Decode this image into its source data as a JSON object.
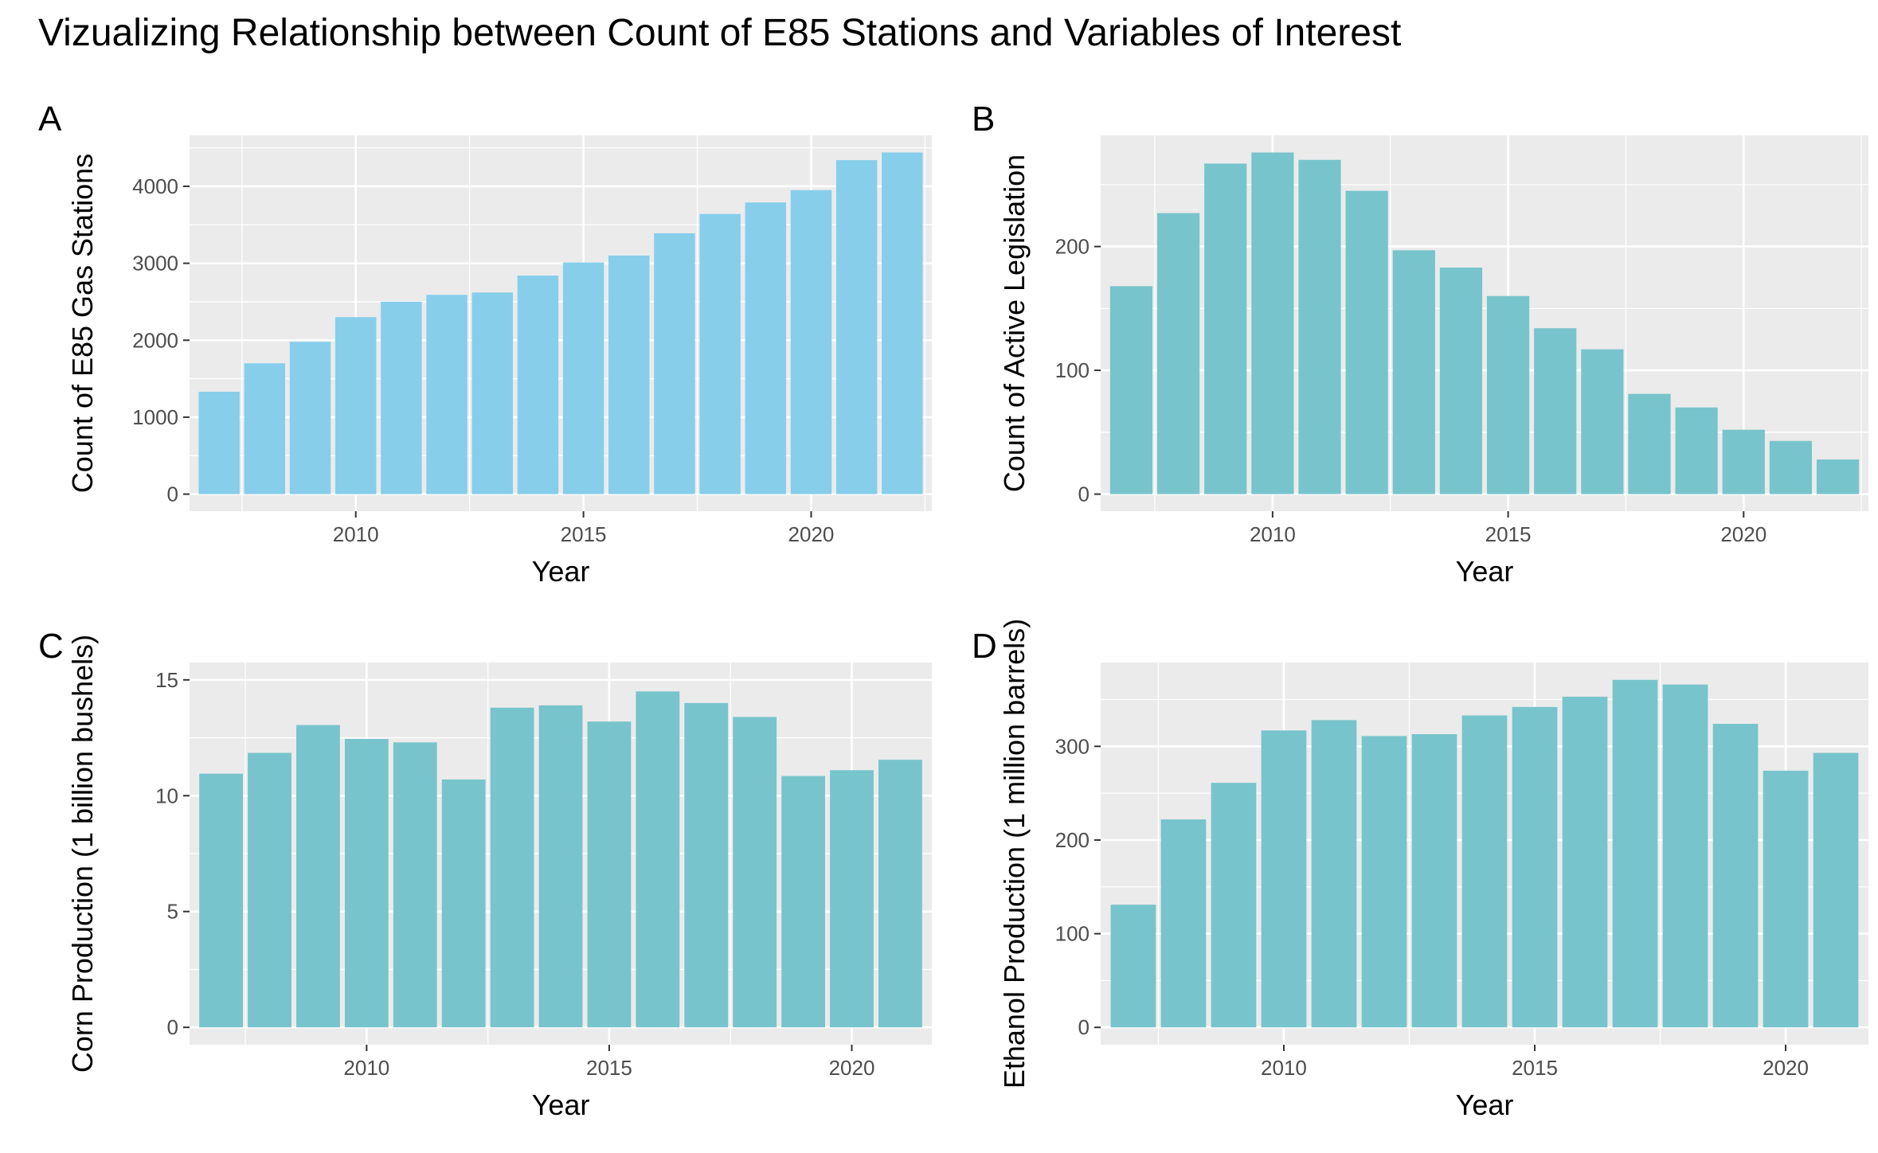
{
  "title": "Vizualizing Relationship between Count of E85 Stations and Variables of Interest",
  "colors": {
    "panel_bg": "#EBEBEB",
    "grid": "#FFFFFF",
    "bar_a": "#87CEEB",
    "bar_bcd": "#78C4CC",
    "tick_text": "#4D4D4D"
  },
  "chart_data": [
    {
      "tag": "A",
      "type": "bar",
      "xlabel": "Year",
      "ylabel": "Count of E85 Gas Stations",
      "x": [
        2007,
        2008,
        2009,
        2010,
        2011,
        2012,
        2013,
        2014,
        2015,
        2016,
        2017,
        2018,
        2019,
        2020,
        2021,
        2022
      ],
      "values": [
        1330,
        1700,
        1980,
        2300,
        2500,
        2590,
        2620,
        2840,
        3010,
        3100,
        3390,
        3640,
        3790,
        3950,
        4340,
        4440
      ],
      "xlim": [
        2006.35,
        2022.65
      ],
      "ylim": [
        -222,
        4662
      ],
      "xticks": [
        2010,
        2015,
        2020
      ],
      "yticks": [
        0,
        1000,
        2000,
        3000,
        4000
      ],
      "color": "#87CEEB",
      "grid": true,
      "legend": "none"
    },
    {
      "tag": "B",
      "type": "bar",
      "xlabel": "Year",
      "ylabel": "Count of Active Legislation",
      "x": [
        2007,
        2008,
        2009,
        2010,
        2011,
        2012,
        2013,
        2014,
        2015,
        2016,
        2017,
        2018,
        2019,
        2020,
        2021,
        2022
      ],
      "values": [
        168,
        227,
        267,
        276,
        270,
        245,
        197,
        183,
        160,
        134,
        117,
        81,
        70,
        52,
        43,
        28
      ],
      "xlim": [
        2006.35,
        2022.65
      ],
      "ylim": [
        -13.8,
        289.8
      ],
      "xticks": [
        2010,
        2015,
        2020
      ],
      "yticks": [
        0,
        100,
        200
      ],
      "color": "#78C4CC",
      "grid": true,
      "legend": "none"
    },
    {
      "tag": "C",
      "type": "bar",
      "xlabel": "Year",
      "ylabel": "Corn Production (1 billion bushels)",
      "x": [
        2007,
        2008,
        2009,
        2010,
        2011,
        2012,
        2013,
        2014,
        2015,
        2016,
        2017,
        2018,
        2019,
        2020,
        2021
      ],
      "values": [
        10.95,
        11.85,
        13.05,
        12.45,
        12.3,
        10.7,
        13.8,
        13.9,
        13.2,
        14.5,
        14.0,
        13.4,
        10.85,
        11.1,
        11.55
      ],
      "xlim": [
        2006.35,
        2021.65
      ],
      "ylim": [
        -0.75,
        15.75
      ],
      "xticks": [
        2010,
        2015,
        2020
      ],
      "yticks": [
        0,
        5,
        10,
        15
      ],
      "color": "#78C4CC",
      "grid": true,
      "legend": "none"
    },
    {
      "tag": "D",
      "type": "bar",
      "xlabel": "Year",
      "ylabel": "Ethanol Production (1 million barrels)",
      "x": [
        2007,
        2008,
        2009,
        2010,
        2011,
        2012,
        2013,
        2014,
        2015,
        2016,
        2017,
        2018,
        2019,
        2020,
        2021
      ],
      "values": [
        131,
        222,
        261,
        317,
        328,
        311,
        313,
        333,
        342,
        353,
        371,
        366,
        324,
        274,
        293
      ],
      "xlim": [
        2006.35,
        2021.65
      ],
      "ylim": [
        -18.5,
        389.5
      ],
      "xticks": [
        2010,
        2015,
        2020
      ],
      "yticks": [
        0,
        100,
        200,
        300
      ],
      "color": "#78C4CC",
      "grid": true,
      "legend": "none"
    }
  ]
}
